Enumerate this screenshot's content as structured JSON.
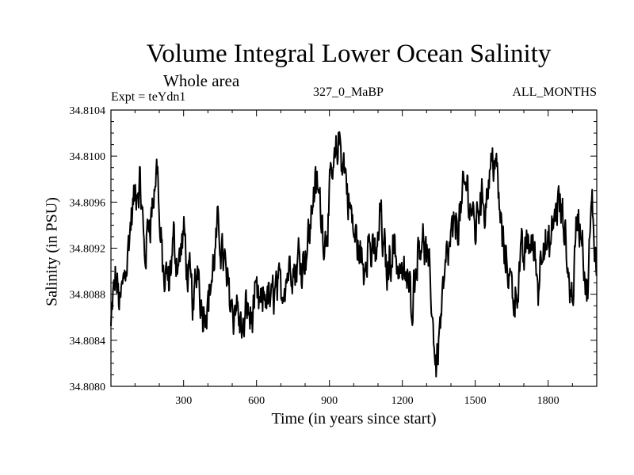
{
  "chart_data": {
    "type": "line",
    "title": "Volume Integral Lower Ocean Salinity",
    "subtitle": "Whole area",
    "expt_label": "Expt = teYdn1",
    "center_label": "327_0_MaBP",
    "right_label": "ALL_MONTHS",
    "xlabel": "Time (in years since start)",
    "ylabel": "Salinity (in PSU)",
    "xlim": [
      1,
      2000
    ],
    "ylim": [
      34.808,
      34.8104
    ],
    "xticks": [
      300,
      600,
      900,
      1200,
      1500,
      1800
    ],
    "xtick_labels": [
      "300",
      "600",
      "900",
      "1200",
      "1500",
      "1800"
    ],
    "yticks": [
      34.808,
      34.8084,
      34.8088,
      34.8092,
      34.8096,
      34.81,
      34.8104
    ],
    "ytick_labels": [
      "34.8080",
      "34.8084",
      "34.8088",
      "34.8092",
      "34.8096",
      "34.8100",
      "34.8104"
    ],
    "series": [
      {
        "name": "Salinity",
        "x": [
          1,
          20,
          40,
          60,
          80,
          100,
          120,
          140,
          160,
          180,
          195,
          200,
          220,
          240,
          260,
          280,
          300,
          320,
          340,
          360,
          380,
          400,
          420,
          440,
          460,
          480,
          500,
          520,
          540,
          550,
          560,
          580,
          600,
          620,
          640,
          660,
          680,
          700,
          720,
          740,
          760,
          780,
          800,
          820,
          840,
          860,
          880,
          900,
          920,
          940,
          950,
          960,
          980,
          1000,
          1020,
          1040,
          1060,
          1080,
          1100,
          1110,
          1120,
          1140,
          1160,
          1180,
          1200,
          1220,
          1240,
          1260,
          1280,
          1300,
          1320,
          1340,
          1360,
          1380,
          1400,
          1420,
          1440,
          1460,
          1480,
          1500,
          1520,
          1540,
          1560,
          1580,
          1600,
          1620,
          1640,
          1660,
          1680,
          1700,
          1720,
          1740,
          1760,
          1780,
          1800,
          1820,
          1840,
          1860,
          1880,
          1900,
          1920,
          1940,
          1960,
          1980,
          2000
        ],
        "values": [
          34.8085,
          34.8089,
          34.8087,
          34.8091,
          34.8094,
          34.8096,
          34.8097,
          34.8091,
          34.8095,
          34.8097,
          34.8099,
          34.8094,
          34.8089,
          34.8088,
          34.8092,
          34.8091,
          34.8093,
          34.8089,
          34.8087,
          34.8091,
          34.8087,
          34.8088,
          34.809,
          34.8093,
          34.8092,
          34.8089,
          34.8088,
          34.8087,
          34.8085,
          34.8084,
          34.8087,
          34.8086,
          34.8087,
          34.8086,
          34.8088,
          34.8087,
          34.8089,
          34.8088,
          34.809,
          34.8091,
          34.809,
          34.8092,
          34.8092,
          34.8094,
          34.8098,
          34.8096,
          34.8093,
          34.8096,
          34.8099,
          34.8101,
          34.81,
          34.8099,
          34.8096,
          34.8093,
          34.8092,
          34.809,
          34.8093,
          34.8091,
          34.8092,
          34.8096,
          34.8092,
          34.809,
          34.8093,
          34.8091,
          34.809,
          34.8089,
          34.8088,
          34.8092,
          34.8094,
          34.8091,
          34.8087,
          34.8082,
          34.8087,
          34.8091,
          34.8092,
          34.8094,
          34.8095,
          34.8097,
          34.8096,
          34.8094,
          34.8097,
          34.8096,
          34.8099,
          34.8101,
          34.8095,
          34.8091,
          34.809,
          34.8088,
          34.809,
          34.8091,
          34.8093,
          34.8092,
          34.8089,
          34.8094,
          34.8091,
          34.8093,
          34.8096,
          34.8094,
          34.809,
          34.8088,
          34.8095,
          34.8093,
          34.8087,
          34.8095,
          34.809
        ]
      }
    ]
  }
}
